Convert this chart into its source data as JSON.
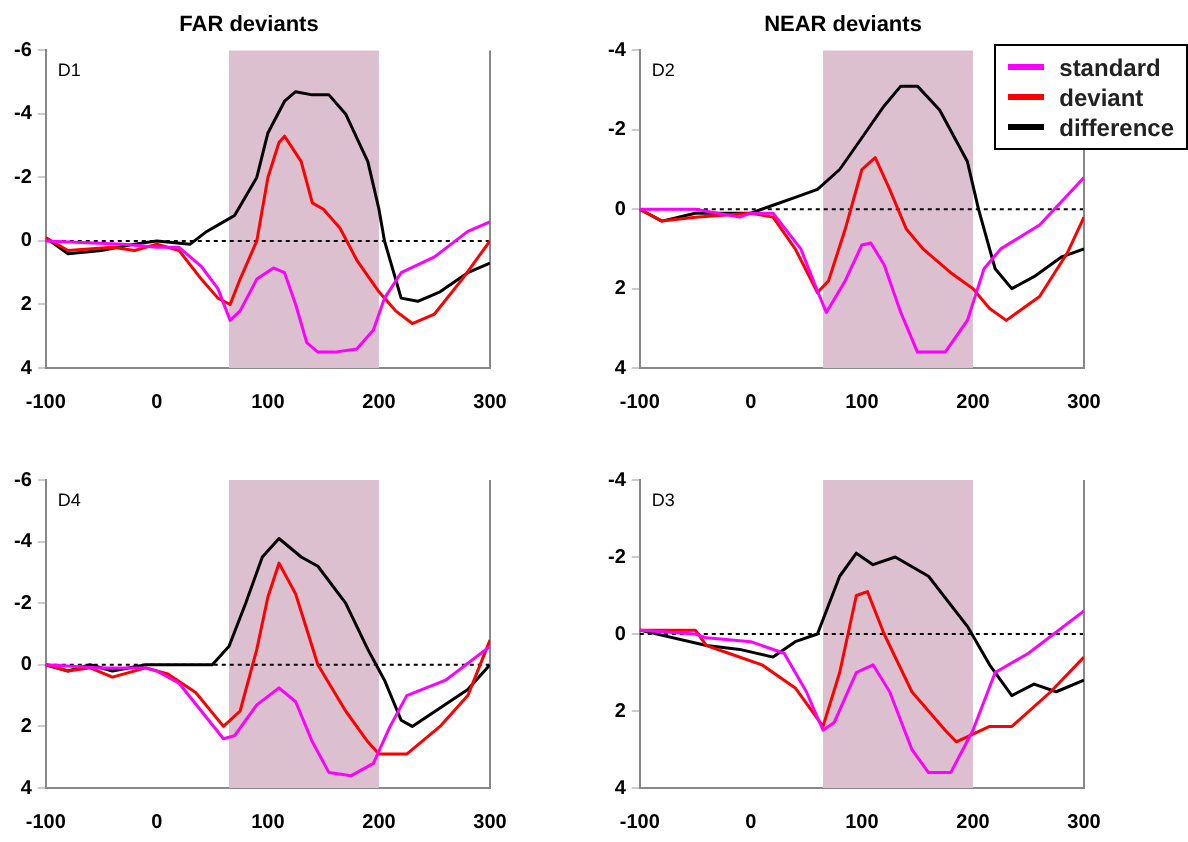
{
  "chart_data": [
    {
      "type": "line",
      "title": "FAR deviants",
      "annotations": [
        "D1"
      ],
      "xlim": [
        -100,
        300
      ],
      "xticks": [
        -100,
        0,
        100,
        200,
        300
      ],
      "ylim": [
        4,
        -6
      ],
      "yticks": [
        -6,
        -4,
        -2,
        0,
        2,
        4
      ],
      "marker": "none",
      "legend": false,
      "ref_lines": [
        {
          "axis": "y",
          "value": 0,
          "color": "#000000",
          "line_style": "dotted"
        }
      ],
      "bands": [
        {
          "axis": "x",
          "from": 65,
          "to": 200,
          "color": "#dcc0d0"
        }
      ],
      "series": [
        {
          "color": "#ff00ff",
          "x": [
            -100,
            -30,
            0,
            20,
            40,
            55,
            66,
            75,
            90,
            105,
            115,
            125,
            135,
            145,
            160,
            180,
            195,
            205,
            220,
            250,
            280,
            300
          ],
          "values": [
            0,
            0.1,
            0.2,
            0.2,
            0.8,
            1.5,
            2.5,
            2.2,
            1.2,
            0.85,
            1,
            2,
            3.2,
            3.5,
            3.5,
            3.4,
            2.8,
            1.8,
            1,
            0.5,
            -0.3,
            -0.6
          ]
        },
        {
          "color": "#ff0000",
          "x": [
            -100,
            -80,
            -40,
            -20,
            0,
            20,
            40,
            55,
            66,
            75,
            90,
            100,
            110,
            115,
            130,
            140,
            150,
            165,
            180,
            200,
            215,
            230,
            250,
            275,
            300
          ],
          "values": [
            -0.1,
            0.3,
            0.2,
            0.3,
            0.1,
            0.3,
            1.2,
            1.8,
            2,
            1.2,
            0,
            -2,
            -3.1,
            -3.3,
            -2.5,
            -1.2,
            -1,
            -0.4,
            0.6,
            1.6,
            2.2,
            2.6,
            2.3,
            1.2,
            0
          ]
        },
        {
          "color": "#000000",
          "x": [
            -100,
            -80,
            -50,
            -20,
            0,
            30,
            45,
            60,
            70,
            90,
            100,
            115,
            125,
            140,
            155,
            170,
            190,
            200,
            205,
            220,
            235,
            255,
            280,
            300
          ],
          "values": [
            -0.1,
            0.4,
            0.3,
            0.1,
            0,
            0.1,
            -0.3,
            -0.6,
            -0.8,
            -2,
            -3.4,
            -4.4,
            -4.7,
            -4.6,
            -4.6,
            -4,
            -2.5,
            -1,
            0,
            1.8,
            1.9,
            1.6,
            1,
            0.7
          ]
        }
      ]
    },
    {
      "type": "line",
      "title": "NEAR deviants",
      "annotations": [
        "D2"
      ],
      "xlim": [
        -100,
        300
      ],
      "xticks": [
        -100,
        0,
        100,
        200,
        300
      ],
      "ylim": [
        4,
        -4
      ],
      "yticks": [
        -4,
        -2,
        0,
        2,
        4
      ],
      "marker": "none",
      "legend": "top right",
      "ref_lines": [
        {
          "axis": "y",
          "value": 0,
          "color": "#000000",
          "line_style": "dotted"
        }
      ],
      "bands": [
        {
          "axis": "x",
          "from": 65,
          "to": 200,
          "color": "#dcc0d0"
        }
      ],
      "series": [
        {
          "name": "standard",
          "color": "#ff00ff",
          "x": [
            -100,
            -50,
            -10,
            0,
            20,
            45,
            62,
            68,
            85,
            100,
            108,
            120,
            135,
            150,
            175,
            195,
            210,
            225,
            260,
            300
          ],
          "values": [
            0,
            0,
            0.2,
            0.1,
            0.1,
            1,
            2.2,
            2.6,
            1.8,
            0.9,
            0.85,
            1.4,
            2.6,
            3.6,
            3.6,
            2.8,
            1.5,
            1,
            0.4,
            -0.8
          ]
        },
        {
          "name": "deviant",
          "color": "#ff0000",
          "x": [
            -100,
            -80,
            -50,
            0,
            20,
            40,
            60,
            70,
            85,
            100,
            112,
            125,
            140,
            155,
            180,
            200,
            215,
            230,
            260,
            285,
            300
          ],
          "values": [
            0,
            0.3,
            0.2,
            0.1,
            0.2,
            1,
            2.1,
            1.8,
            0.5,
            -1,
            -1.3,
            -0.5,
            0.5,
            1,
            1.6,
            2,
            2.5,
            2.8,
            2.2,
            1.1,
            0.2
          ]
        },
        {
          "name": "difference",
          "color": "#000000",
          "x": [
            -100,
            -80,
            -50,
            0,
            20,
            40,
            60,
            80,
            100,
            120,
            135,
            150,
            170,
            195,
            205,
            220,
            235,
            255,
            280,
            300
          ],
          "values": [
            0,
            0.3,
            0.1,
            0.1,
            -0.1,
            -0.3,
            -0.5,
            -1,
            -1.8,
            -2.6,
            -3.1,
            -3.1,
            -2.5,
            -1.2,
            0,
            1.5,
            2,
            1.7,
            1.2,
            1
          ]
        }
      ]
    },
    {
      "type": "line",
      "annotations": [
        "D4"
      ],
      "xlim": [
        -100,
        300
      ],
      "xticks": [
        -100,
        0,
        100,
        200,
        300
      ],
      "ylim": [
        4,
        -6
      ],
      "yticks": [
        -6,
        -4,
        -2,
        0,
        2,
        4
      ],
      "marker": "none",
      "legend": false,
      "ref_lines": [
        {
          "axis": "y",
          "value": 0,
          "color": "#000000",
          "line_style": "dotted"
        }
      ],
      "bands": [
        {
          "axis": "x",
          "from": 65,
          "to": 200,
          "color": "#dcc0d0"
        }
      ],
      "series": [
        {
          "color": "#ff00ff",
          "x": [
            -100,
            -50,
            -10,
            0,
            20,
            40,
            60,
            70,
            90,
            110,
            125,
            140,
            155,
            175,
            195,
            210,
            225,
            260,
            300
          ],
          "values": [
            0,
            0.1,
            0.1,
            0.2,
            0.6,
            1.5,
            2.4,
            2.3,
            1.3,
            0.75,
            1.2,
            2.5,
            3.5,
            3.6,
            3.2,
            2,
            1,
            0.5,
            -0.6
          ]
        },
        {
          "color": "#ff0000",
          "x": [
            -100,
            -80,
            -60,
            -40,
            -10,
            10,
            35,
            60,
            75,
            90,
            100,
            110,
            125,
            145,
            170,
            190,
            200,
            215,
            225,
            255,
            280,
            300
          ],
          "values": [
            0,
            0.2,
            0.1,
            0.4,
            0.1,
            0.3,
            0.9,
            2,
            1.5,
            -0.5,
            -2.2,
            -3.3,
            -2.3,
            0,
            1.5,
            2.5,
            2.9,
            2.9,
            2.9,
            2,
            1,
            -0.8
          ]
        },
        {
          "color": "#000000",
          "x": [
            -100,
            -80,
            -60,
            -40,
            -10,
            50,
            65,
            80,
            95,
            110,
            130,
            145,
            170,
            190,
            205,
            220,
            230,
            255,
            280,
            300
          ],
          "values": [
            0,
            0.2,
            0,
            0.2,
            0,
            0,
            -0.6,
            -2,
            -3.5,
            -4.1,
            -3.5,
            -3.2,
            -2,
            -0.5,
            0.5,
            1.8,
            2,
            1.4,
            0.8,
            0
          ]
        }
      ]
    },
    {
      "type": "line",
      "annotations": [
        "D3"
      ],
      "xlim": [
        -100,
        300
      ],
      "xticks": [
        -100,
        0,
        100,
        200,
        300
      ],
      "ylim": [
        4,
        -4
      ],
      "yticks": [
        -4,
        -2,
        0,
        2,
        4
      ],
      "marker": "none",
      "legend": false,
      "ref_lines": [
        {
          "axis": "y",
          "value": 0,
          "color": "#000000",
          "line_style": "dotted"
        }
      ],
      "bands": [
        {
          "axis": "x",
          "from": 65,
          "to": 200,
          "color": "#dcc0d0"
        }
      ],
      "series": [
        {
          "color": "#ff00ff",
          "x": [
            -100,
            -50,
            -40,
            0,
            30,
            50,
            65,
            75,
            95,
            110,
            125,
            145,
            160,
            180,
            200,
            220,
            250,
            300
          ],
          "values": [
            -0.1,
            0,
            0.1,
            0.2,
            0.5,
            1.5,
            2.5,
            2.3,
            1,
            0.8,
            1.5,
            3,
            3.6,
            3.6,
            2.5,
            1,
            0.5,
            -0.6
          ]
        },
        {
          "color": "#ff0000",
          "x": [
            -100,
            -50,
            -40,
            -20,
            10,
            40,
            65,
            80,
            95,
            105,
            120,
            145,
            175,
            185,
            215,
            235,
            270,
            300
          ],
          "values": [
            -0.1,
            -0.1,
            0.3,
            0.5,
            0.8,
            1.4,
            2.4,
            1,
            -1,
            -1.1,
            0,
            1.5,
            2.5,
            2.8,
            2.4,
            2.4,
            1.5,
            0.6
          ]
        },
        {
          "color": "#000000",
          "x": [
            -100,
            -40,
            -10,
            20,
            40,
            60,
            80,
            95,
            110,
            130,
            160,
            195,
            215,
            235,
            255,
            275,
            300
          ],
          "values": [
            -0.1,
            0.3,
            0.4,
            0.6,
            0.2,
            0,
            -1.5,
            -2.1,
            -1.8,
            -2,
            -1.5,
            -0.2,
            0.8,
            1.6,
            1.3,
            1.5,
            1.2
          ]
        }
      ]
    }
  ]
}
